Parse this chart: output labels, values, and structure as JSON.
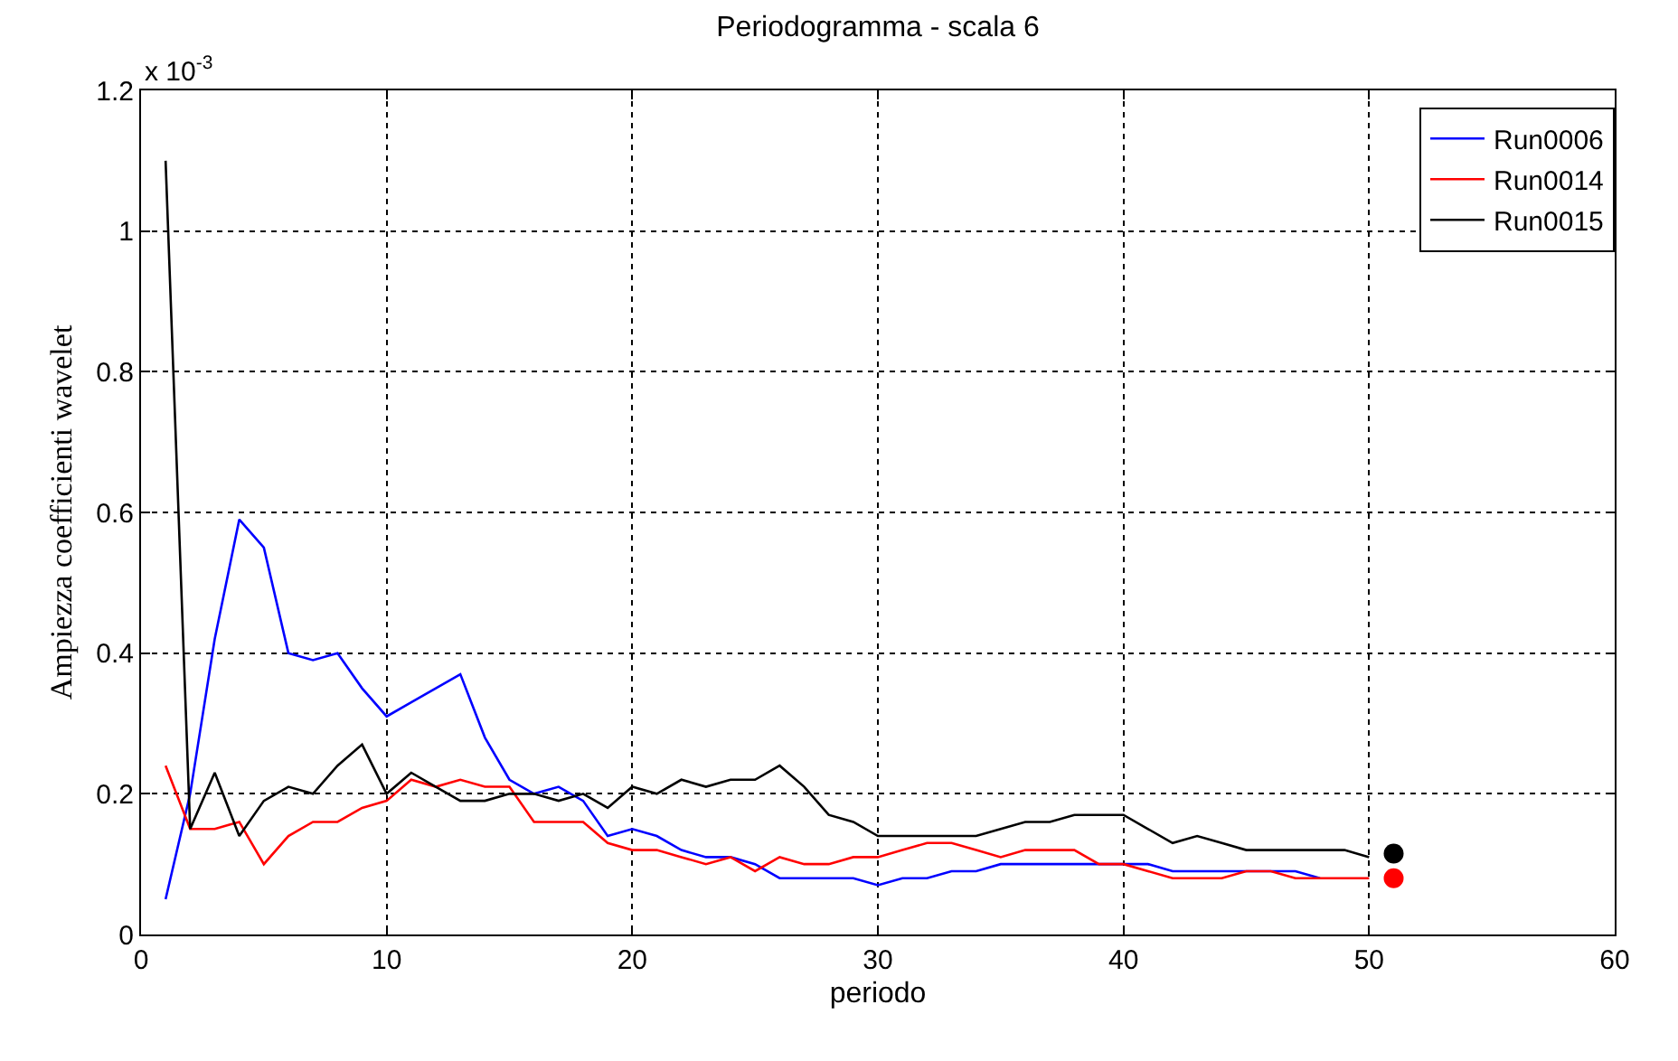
{
  "chart_data": {
    "type": "line",
    "title": "Periodogramma - scala 6",
    "xlabel": "periodo",
    "ylabel": "Ampiezza coefficienti wavelet",
    "annotations": [
      "x 10$^{-3}$"
    ],
    "xlim": [
      0,
      60
    ],
    "xticks": [
      0,
      10,
      20,
      30,
      40,
      50,
      60
    ],
    "ylim": [
      0,
      1.2
    ],
    "yticks": [
      0,
      0.2,
      0.4,
      0.6,
      0.8,
      1,
      1.2
    ],
    "grid": true,
    "legend": "top right",
    "line_style": "solid",
    "series": [
      {
        "name": "Run0006",
        "color": "#0000ff",
        "x": [
          1,
          2,
          3,
          4,
          5,
          6,
          7,
          8,
          9,
          10,
          11,
          12,
          13,
          14,
          15,
          16,
          17,
          18,
          19,
          20,
          21,
          22,
          23,
          24,
          25,
          26,
          27,
          28,
          29,
          30,
          31,
          32,
          33,
          34,
          35,
          36,
          37,
          38,
          39,
          40,
          41,
          42,
          43,
          44,
          45,
          46,
          47,
          48
        ],
        "values": [
          0.05,
          0.2,
          0.42,
          0.59,
          0.55,
          0.4,
          0.39,
          0.4,
          0.35,
          0.31,
          0.33,
          0.35,
          0.37,
          0.28,
          0.22,
          0.2,
          0.21,
          0.19,
          0.14,
          0.15,
          0.14,
          0.12,
          0.11,
          0.11,
          0.1,
          0.08,
          0.08,
          0.08,
          0.08,
          0.07,
          0.08,
          0.08,
          0.09,
          0.09,
          0.1,
          0.1,
          0.1,
          0.1,
          0.1,
          0.1,
          0.1,
          0.09,
          0.09,
          0.09,
          0.09,
          0.09,
          0.09,
          0.08
        ]
      },
      {
        "name": "Run0014",
        "color": "#ff0000",
        "x": [
          1,
          2,
          3,
          4,
          5,
          6,
          7,
          8,
          9,
          10,
          11,
          12,
          13,
          14,
          15,
          16,
          17,
          18,
          19,
          20,
          21,
          22,
          23,
          24,
          25,
          26,
          27,
          28,
          29,
          30,
          31,
          32,
          33,
          34,
          35,
          36,
          37,
          38,
          39,
          40,
          41,
          42,
          43,
          44,
          45,
          46,
          47,
          48,
          49,
          50
        ],
        "values": [
          0.24,
          0.15,
          0.15,
          0.16,
          0.1,
          0.14,
          0.16,
          0.16,
          0.18,
          0.19,
          0.22,
          0.21,
          0.22,
          0.21,
          0.21,
          0.16,
          0.16,
          0.16,
          0.13,
          0.12,
          0.12,
          0.11,
          0.1,
          0.11,
          0.09,
          0.11,
          0.1,
          0.1,
          0.11,
          0.11,
          0.12,
          0.13,
          0.13,
          0.12,
          0.11,
          0.12,
          0.12,
          0.12,
          0.1,
          0.1,
          0.09,
          0.08,
          0.08,
          0.08,
          0.09,
          0.09,
          0.08,
          0.08,
          0.08,
          0.08
        ]
      },
      {
        "name": "Run0015",
        "color": "#000000",
        "x": [
          1,
          2,
          3,
          4,
          5,
          6,
          7,
          8,
          9,
          10,
          11,
          12,
          13,
          14,
          15,
          16,
          17,
          18,
          19,
          20,
          21,
          22,
          23,
          24,
          25,
          26,
          27,
          28,
          29,
          30,
          31,
          32,
          33,
          34,
          35,
          36,
          37,
          38,
          39,
          40,
          41,
          42,
          43,
          44,
          45,
          46,
          47,
          48,
          49,
          50
        ],
        "values": [
          1.1,
          0.15,
          0.23,
          0.14,
          0.19,
          0.21,
          0.2,
          0.24,
          0.27,
          0.2,
          0.23,
          0.21,
          0.19,
          0.19,
          0.2,
          0.2,
          0.19,
          0.2,
          0.18,
          0.21,
          0.2,
          0.22,
          0.21,
          0.22,
          0.22,
          0.24,
          0.21,
          0.17,
          0.16,
          0.14,
          0.14,
          0.14,
          0.14,
          0.14,
          0.15,
          0.16,
          0.16,
          0.17,
          0.17,
          0.17,
          0.15,
          0.13,
          0.14,
          0.13,
          0.12,
          0.12,
          0.12,
          0.12,
          0.12,
          0.11
        ]
      },
      {
        "type": "scatter",
        "marker": "circle",
        "color": "#000000",
        "x": [
          51
        ],
        "values": [
          0.115
        ]
      },
      {
        "type": "scatter",
        "marker": "circle",
        "color": "#ff0000",
        "x": [
          51
        ],
        "values": [
          0.08
        ]
      }
    ]
  }
}
